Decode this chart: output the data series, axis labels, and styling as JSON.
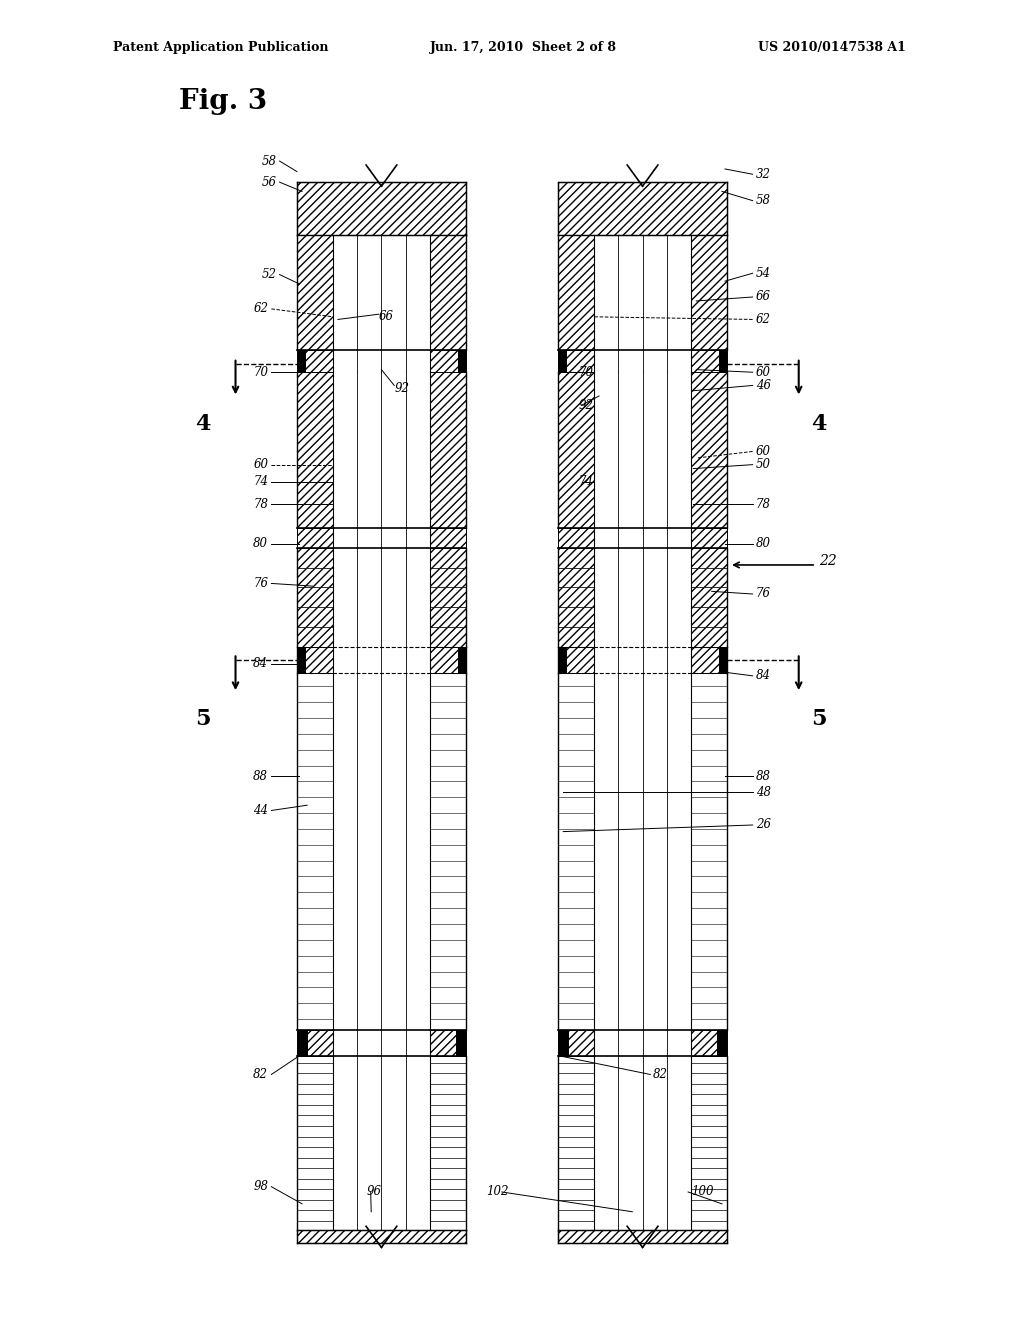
{
  "bg_color": "#ffffff",
  "header_text": "Patent Application Publication",
  "header_date": "Jun. 17, 2010  Sheet 2 of 8",
  "header_patent": "US 2010/0147538 A1",
  "fig_label": "Fig. 3",
  "label_fontsize": 8.5,
  "label_22_fontsize": 10,
  "fig_label_fontsize": 20,
  "header_fontsize": 9,
  "section_num_fontsize": 16
}
